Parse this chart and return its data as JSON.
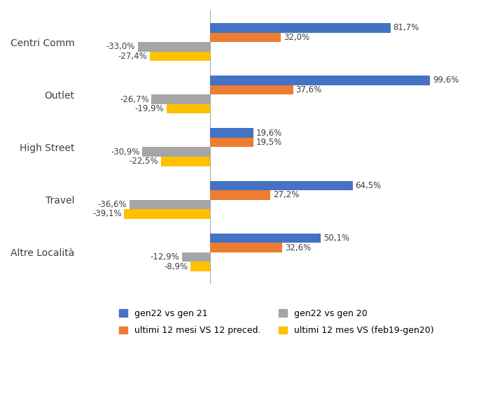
{
  "categories": [
    "Altre Località",
    "Travel",
    "High Street",
    "Outlet",
    "Centri Comm"
  ],
  "series": {
    "gen22_vs_gen21": [
      50.1,
      64.5,
      19.6,
      99.6,
      81.7
    ],
    "ultimi12_vs_12prec": [
      32.6,
      27.2,
      19.5,
      37.6,
      32.0
    ],
    "gen22_vs_gen20": [
      -12.9,
      -36.6,
      -30.9,
      -26.7,
      -33.0
    ],
    "ultimi12_vs_feb19gen20": [
      -8.9,
      -39.1,
      -22.5,
      -19.9,
      -27.4
    ]
  },
  "colors": {
    "gen22_vs_gen21": "#4472C4",
    "ultimi12_vs_12prec": "#ED7D31",
    "gen22_vs_gen20": "#A5A5A5",
    "ultimi12_vs_feb19gen20": "#FFC000"
  },
  "legend_labels": {
    "gen22_vs_gen21": "gen22 vs gen 21",
    "ultimi12_vs_12prec": "ultimi 12 mesi VS 12 preced.",
    "gen22_vs_gen20": "gen22 vs gen 20",
    "ultimi12_vs_feb19gen20": "ultimi 12 mes VS (feb19-gen20)"
  },
  "bar_height": 0.18,
  "xlim": [
    -58,
    118
  ],
  "background_color": "#FFFFFF",
  "label_fontsize": 8.5,
  "category_fontsize": 10
}
